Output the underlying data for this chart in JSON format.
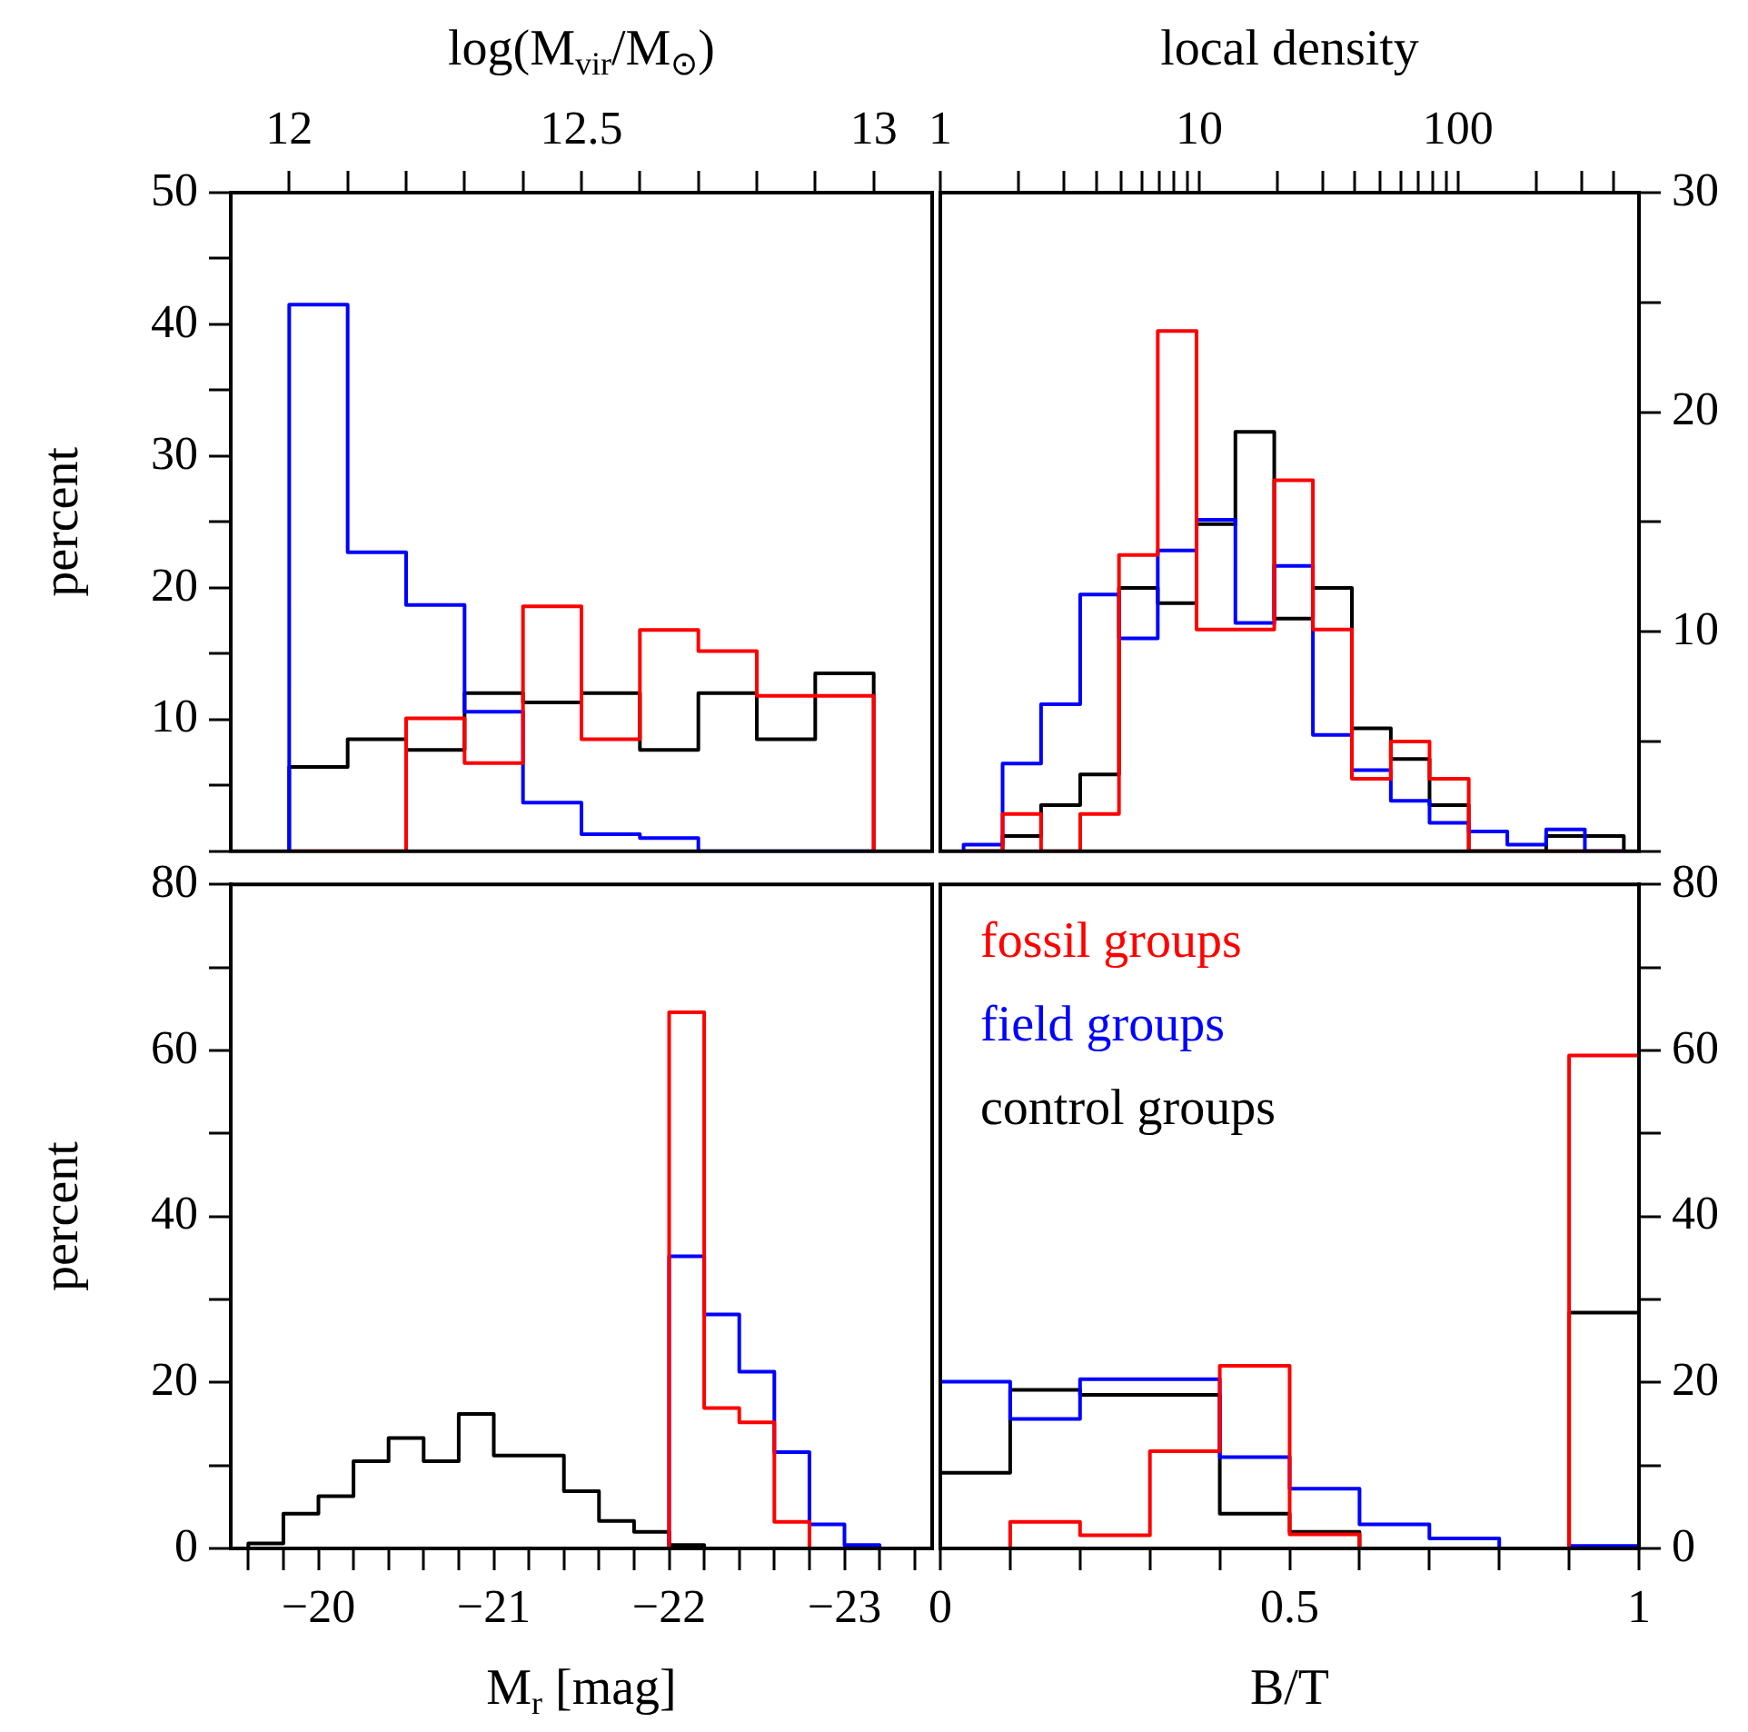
{
  "chart_data": [
    {
      "type": "histogram",
      "xlabel": "log(M$_{vir}$/M$_{⊙}$)",
      "ylabel": "percent",
      "bins": [
        12,
        12.1,
        12.2,
        12.3,
        12.4,
        12.5,
        12.6,
        12.7,
        12.8,
        12.9,
        13
      ],
      "xlim": [
        11.9,
        13.1
      ],
      "xticks": [
        12,
        {
          "value": 12.1,
          "label": null
        },
        {
          "value": 12.2,
          "label": null
        },
        {
          "value": 12.3,
          "label": null
        },
        {
          "value": 12.4,
          "label": null
        },
        12.5,
        {
          "value": 12.6,
          "label": null
        },
        {
          "value": 12.7,
          "label": null
        },
        {
          "value": 12.8,
          "label": null
        },
        {
          "value": 12.9,
          "label": null
        },
        13
      ],
      "ylim": [
        0,
        50
      ],
      "yticks": [
        {
          "value": 0,
          "label": null
        },
        {
          "value": 5,
          "label": null
        },
        10,
        {
          "value": 15,
          "label": null
        },
        20,
        {
          "value": 25,
          "label": null
        },
        30,
        {
          "value": 35,
          "label": null
        },
        40,
        {
          "value": 45,
          "label": null
        },
        50
      ],
      "series": [
        {
          "color": "#ff0000",
          "values": [
            0,
            0,
            10.1,
            6.7,
            18.6,
            8.5,
            16.8,
            15.2,
            11.8,
            11.8
          ]
        },
        {
          "color": "#0000ff",
          "values": [
            41.5,
            22.7,
            18.7,
            10.6,
            3.7,
            1.3,
            1.0,
            0,
            0,
            0
          ]
        },
        {
          "color": "#000000",
          "values": [
            6.4,
            8.5,
            7.7,
            12.0,
            11.3,
            12.0,
            7.7,
            12.0,
            8.5,
            13.5
          ]
        }
      ]
    },
    {
      "type": "histogram",
      "xlabel": "local density",
      "log": "x",
      "bins": [
        1.23,
        1.74,
        2.45,
        3.47,
        4.9,
        6.92,
        9.77,
        13.8,
        19.5,
        27.5,
        38.9,
        55,
        77.6,
        110,
        155,
        219,
        309,
        437
      ],
      "xlim": [
        1,
        500
      ],
      "xticks": [
        1,
        {
          "value": 2,
          "label": null
        },
        {
          "value": 3,
          "label": null
        },
        {
          "value": 4,
          "label": null
        },
        {
          "value": 5,
          "label": null
        },
        {
          "value": 6,
          "label": null
        },
        {
          "value": 7,
          "label": null
        },
        {
          "value": 8,
          "label": null
        },
        {
          "value": 9,
          "label": null
        },
        10,
        {
          "value": 20,
          "label": null
        },
        {
          "value": 30,
          "label": null
        },
        {
          "value": 40,
          "label": null
        },
        {
          "value": 50,
          "label": null
        },
        {
          "value": 60,
          "label": null
        },
        {
          "value": 70,
          "label": null
        },
        {
          "value": 80,
          "label": null
        },
        {
          "value": 90,
          "label": null
        },
        100,
        {
          "value": 200,
          "label": null
        },
        {
          "value": 300,
          "label": null
        },
        {
          "value": 400,
          "label": null
        }
      ],
      "y2lim": [
        0,
        30
      ],
      "y2ticks": [
        {
          "value": 0,
          "label": null
        },
        {
          "value": 5,
          "label": null
        },
        10,
        {
          "value": 15,
          "label": null
        },
        20,
        {
          "value": 25,
          "label": null
        },
        30
      ],
      "series": [
        {
          "color": "#ff0000",
          "axis": "y2",
          "values": [
            0,
            1.7,
            0,
            1.7,
            13.5,
            23.7,
            10.1,
            10.1,
            16.9,
            10.1,
            3.3,
            5.0,
            3.3,
            0,
            0,
            0,
            0
          ]
        },
        {
          "color": "#0000ff",
          "axis": "y2",
          "values": [
            0.3,
            4.0,
            6.7,
            11.7,
            9.7,
            13.7,
            15.1,
            10.4,
            13.0,
            5.3,
            3.7,
            2.3,
            1.3,
            0.9,
            0.3,
            1.0,
            0
          ]
        },
        {
          "color": "#000000",
          "axis": "y2",
          "values": [
            0,
            0.7,
            2.1,
            3.5,
            12.0,
            11.3,
            14.9,
            19.1,
            10.6,
            12.0,
            5.6,
            4.2,
            2.1,
            0,
            0,
            0.7,
            0.7
          ]
        }
      ]
    },
    {
      "type": "histogram",
      "xlabel": "M$_{r}$ [mag]",
      "ylabel": "percent",
      "bins": [
        -19.6,
        -19.8,
        -20,
        -20.2,
        -20.4,
        -20.6,
        -20.8,
        -21,
        -21.2,
        -21.4,
        -21.6,
        -21.8,
        -22,
        -22.2,
        -22.4,
        -22.6,
        -22.8,
        -23,
        -23.2,
        -23.4
      ],
      "xlim": [
        -19.5,
        -23.5
      ],
      "xticks": [
        {
          "value": -19.6,
          "label": null
        },
        {
          "value": -19.8,
          "label": null
        },
        {
          "value": -20,
          "label": "−20"
        },
        {
          "value": -20.2,
          "label": null
        },
        {
          "value": -20.4,
          "label": null
        },
        {
          "value": -20.6,
          "label": null
        },
        {
          "value": -20.8,
          "label": null
        },
        {
          "value": -21,
          "label": "−21"
        },
        {
          "value": -21.2,
          "label": null
        },
        {
          "value": -21.4,
          "label": null
        },
        {
          "value": -21.6,
          "label": null
        },
        {
          "value": -21.8,
          "label": null
        },
        {
          "value": -22,
          "label": "−22"
        },
        {
          "value": -22.2,
          "label": null
        },
        {
          "value": -22.4,
          "label": null
        },
        {
          "value": -22.6,
          "label": null
        },
        {
          "value": -22.8,
          "label": null
        },
        {
          "value": -23,
          "label": "−23"
        },
        {
          "value": -23.2,
          "label": null
        },
        {
          "value": -23.4,
          "label": null
        }
      ],
      "ylim": [
        0,
        80
      ],
      "yticks": [
        0,
        {
          "value": 10,
          "label": null
        },
        20,
        {
          "value": 30,
          "label": null
        },
        40,
        {
          "value": 50,
          "label": null
        },
        60,
        {
          "value": 70,
          "label": null
        },
        80
      ],
      "series": [
        {
          "color": "#ff0000",
          "values": [
            0,
            0,
            0,
            0,
            0,
            0,
            0,
            0,
            0,
            0,
            0,
            0,
            64.6,
            16.9,
            15.2,
            3.2,
            0,
            0,
            0
          ]
        },
        {
          "color": "#0000ff",
          "values": [
            0,
            0,
            0,
            0,
            0,
            0,
            0,
            0,
            0,
            0,
            0,
            0,
            35.2,
            28.2,
            21.3,
            11.6,
            2.9,
            0.4,
            0
          ]
        },
        {
          "color": "#000000",
          "values": [
            0.6,
            4.2,
            6.3,
            10.5,
            13.3,
            10.5,
            16.2,
            11.2,
            11.2,
            6.9,
            3.3,
            2.0,
            0.4,
            0,
            0,
            0,
            0,
            0,
            0
          ]
        }
      ]
    },
    {
      "type": "histogram",
      "xlabel": "B/T",
      "legend": "top left",
      "bins": [
        0,
        0.1,
        0.2,
        0.3,
        0.4,
        0.5,
        0.6,
        0.7,
        0.8,
        0.9,
        1
      ],
      "xlim": [
        0,
        1
      ],
      "xticks": [
        0,
        {
          "value": 0.1,
          "label": null
        },
        {
          "value": 0.2,
          "label": null
        },
        {
          "value": 0.3,
          "label": null
        },
        {
          "value": 0.4,
          "label": null
        },
        0.5,
        {
          "value": 0.6,
          "label": null
        },
        {
          "value": 0.7,
          "label": null
        },
        {
          "value": 0.8,
          "label": null
        },
        {
          "value": 0.9,
          "label": null
        },
        1
      ],
      "y2lim": [
        0,
        80
      ],
      "y2ticks": [
        0,
        {
          "value": 10,
          "label": null
        },
        20,
        {
          "value": 30,
          "label": null
        },
        40,
        {
          "value": 50,
          "label": null
        },
        60,
        {
          "value": 70,
          "label": null
        },
        80
      ],
      "series": [
        {
          "name": "fossil groups",
          "color": "#ff0000",
          "axis": "y2",
          "values": [
            0,
            3.2,
            1.6,
            11.7,
            22.0,
            1.7,
            0,
            0,
            0,
            59.4
          ]
        },
        {
          "name": "field groups",
          "color": "#0000ff",
          "axis": "y2",
          "values": [
            20.1,
            15.6,
            20.4,
            20.4,
            11.0,
            7.2,
            2.9,
            1.2,
            0,
            0.3
          ]
        },
        {
          "name": "control groups",
          "color": "#000000",
          "axis": "y2",
          "values": [
            9.1,
            19.1,
            18.5,
            18.5,
            4.2,
            2.0,
            0,
            0,
            0,
            28.4
          ]
        }
      ]
    }
  ]
}
